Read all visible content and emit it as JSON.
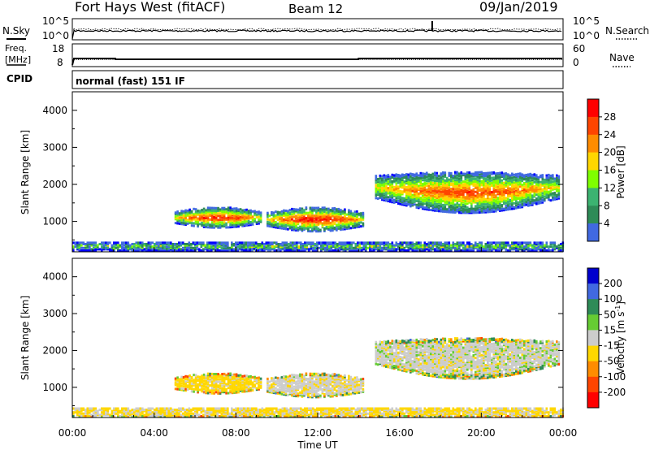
{
  "header": {
    "station": "Fort Hays West (fitACF)",
    "beam": "Beam 12",
    "date": "09/Jan/2019"
  },
  "noise_panel": {
    "left_label": "N.Sky",
    "right_label": "N.Search",
    "left_ticks": [
      "10^5",
      "10^0"
    ],
    "right_ticks": [
      "10^5",
      "10^0"
    ]
  },
  "freq_panel": {
    "left_label_line1": "Freq.",
    "left_label_line2": "[MHz]",
    "right_label": "Nave",
    "left_ticks": [
      "18",
      "8"
    ],
    "right_ticks": [
      "60",
      "0"
    ]
  },
  "cpid": {
    "label": "CPID",
    "mode": "normal (fast) 151 IF"
  },
  "power_panel": {
    "ylabel": "Slant Range [km]",
    "yticks": [
      "4000",
      "3000",
      "2000",
      "1000"
    ],
    "cbar_label": "Power [dB]",
    "cbar_ticks": [
      "28",
      "24",
      "20",
      "16",
      "12",
      "8",
      "4"
    ],
    "cbar_colors": [
      "#ff0000",
      "#ff4500",
      "#ff8c00",
      "#ffd700",
      "#7fff00",
      "#3cb371",
      "#2e8b57",
      "#4169e1",
      "#0000ff"
    ]
  },
  "velocity_panel": {
    "ylabel": "Slant Range [km]",
    "yticks": [
      "4000",
      "3000",
      "2000",
      "1000"
    ],
    "cbar_label": "Velocity [m s",
    "cbar_label_sup": "-1",
    "cbar_label_end": "]",
    "cbar_ticks": [
      "200",
      "100",
      "50",
      "15",
      "-15",
      "-50",
      "-100",
      "-200"
    ],
    "cbar_colors": [
      "#0000cd",
      "#4169e1",
      "#2e8b57",
      "#66cc33",
      "#cccccc",
      "#ffd700",
      "#ff8c00",
      "#ff4500",
      "#ff0000"
    ]
  },
  "x_axis": {
    "ticks": [
      "00:00",
      "04:00",
      "08:00",
      "12:00",
      "16:00",
      "20:00",
      "00:00"
    ],
    "label": "Time UT"
  },
  "chart_data": {
    "type": "heatmap",
    "title": "Fort Hays West (fitACF) Beam 12 09/Jan/2019",
    "xlabel": "Time UT",
    "ylabel": "Slant Range [km]",
    "x_range_hours": [
      0,
      24
    ],
    "y_range_km": [
      180,
      4500
    ],
    "power_clim_dB": [
      0,
      30
    ],
    "velocity_clim_ms": [
      -250,
      250
    ],
    "echo_regions": [
      {
        "t_start": 5.0,
        "t_end": 9.2,
        "r_min": 800,
        "r_max": 1350,
        "power_peak_dB": 28,
        "velocity": -30
      },
      {
        "t_start": 9.5,
        "t_end": 14.2,
        "r_min": 700,
        "r_max": 1350,
        "power_peak_dB": 29,
        "velocity": -5
      },
      {
        "t_start": 14.8,
        "t_end": 23.8,
        "r_min": 1350,
        "r_max": 2450,
        "power_peak_dB": 26,
        "velocity": 0
      },
      {
        "t_start": 0.0,
        "t_end": 24.0,
        "r_min": 180,
        "r_max": 420,
        "power_peak_dB": 18,
        "velocity": -20
      }
    ]
  }
}
